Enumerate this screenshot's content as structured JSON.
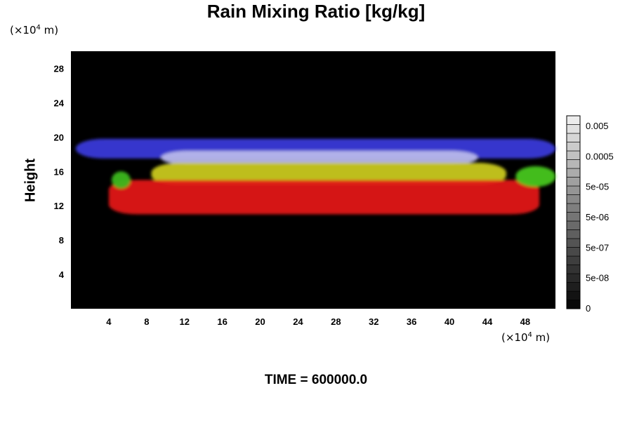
{
  "chart_data": {
    "type": "heatmap",
    "title": "Rain Mixing Ratio [kg/kg]",
    "ylabel": "Height",
    "xlabel": "",
    "y_unit_label": "(×10",
    "y_unit_exp": "4",
    "y_unit_tail": " m)",
    "x_unit_label": "(×10",
    "x_unit_exp": "4",
    "x_unit_tail": " m)",
    "xlim": [
      0,
      51.2
    ],
    "ylim": [
      0,
      30
    ],
    "x_ticks": [
      "4",
      "8",
      "12",
      "16",
      "20",
      "24",
      "28",
      "32",
      "36",
      "40",
      "44",
      "48"
    ],
    "y_ticks": [
      "4",
      "8",
      "12",
      "16",
      "20",
      "24",
      "28"
    ],
    "background_color": "#000000",
    "colorbar": {
      "labels": [
        "0.005",
        "0.0005",
        "5e-05",
        "5e-06",
        "5e-07",
        "5e-08",
        "0"
      ],
      "levels": 22
    },
    "bands": [
      {
        "name": "blue",
        "color": "#3a3ad8",
        "y_low": 17.5,
        "y_high": 19.8,
        "x_start": 0.5,
        "x_end": 51.2
      },
      {
        "name": "lavender",
        "color": "#b7b7ea",
        "y_low": 16.8,
        "y_high": 18.4,
        "x_start": 9.5,
        "x_end": 43
      },
      {
        "name": "yellow",
        "color": "#c8c81a",
        "y_low": 14.4,
        "y_high": 17.0,
        "x_start": 8.5,
        "x_end": 46
      },
      {
        "name": "red",
        "color": "#e01818",
        "y_low": 11.0,
        "y_high": 15.0,
        "x_start": 4,
        "x_end": 49.5
      },
      {
        "name": "green-right",
        "color": "#46c61c",
        "y_low": 14.2,
        "y_high": 16.6,
        "x_start": 47,
        "x_end": 51.2
      },
      {
        "name": "green-left",
        "color": "#3cb81c",
        "y_low": 14.0,
        "y_high": 16.0,
        "x_start": 4.3,
        "x_end": 6.3
      }
    ]
  },
  "time_label": "TIME = 600000.0"
}
